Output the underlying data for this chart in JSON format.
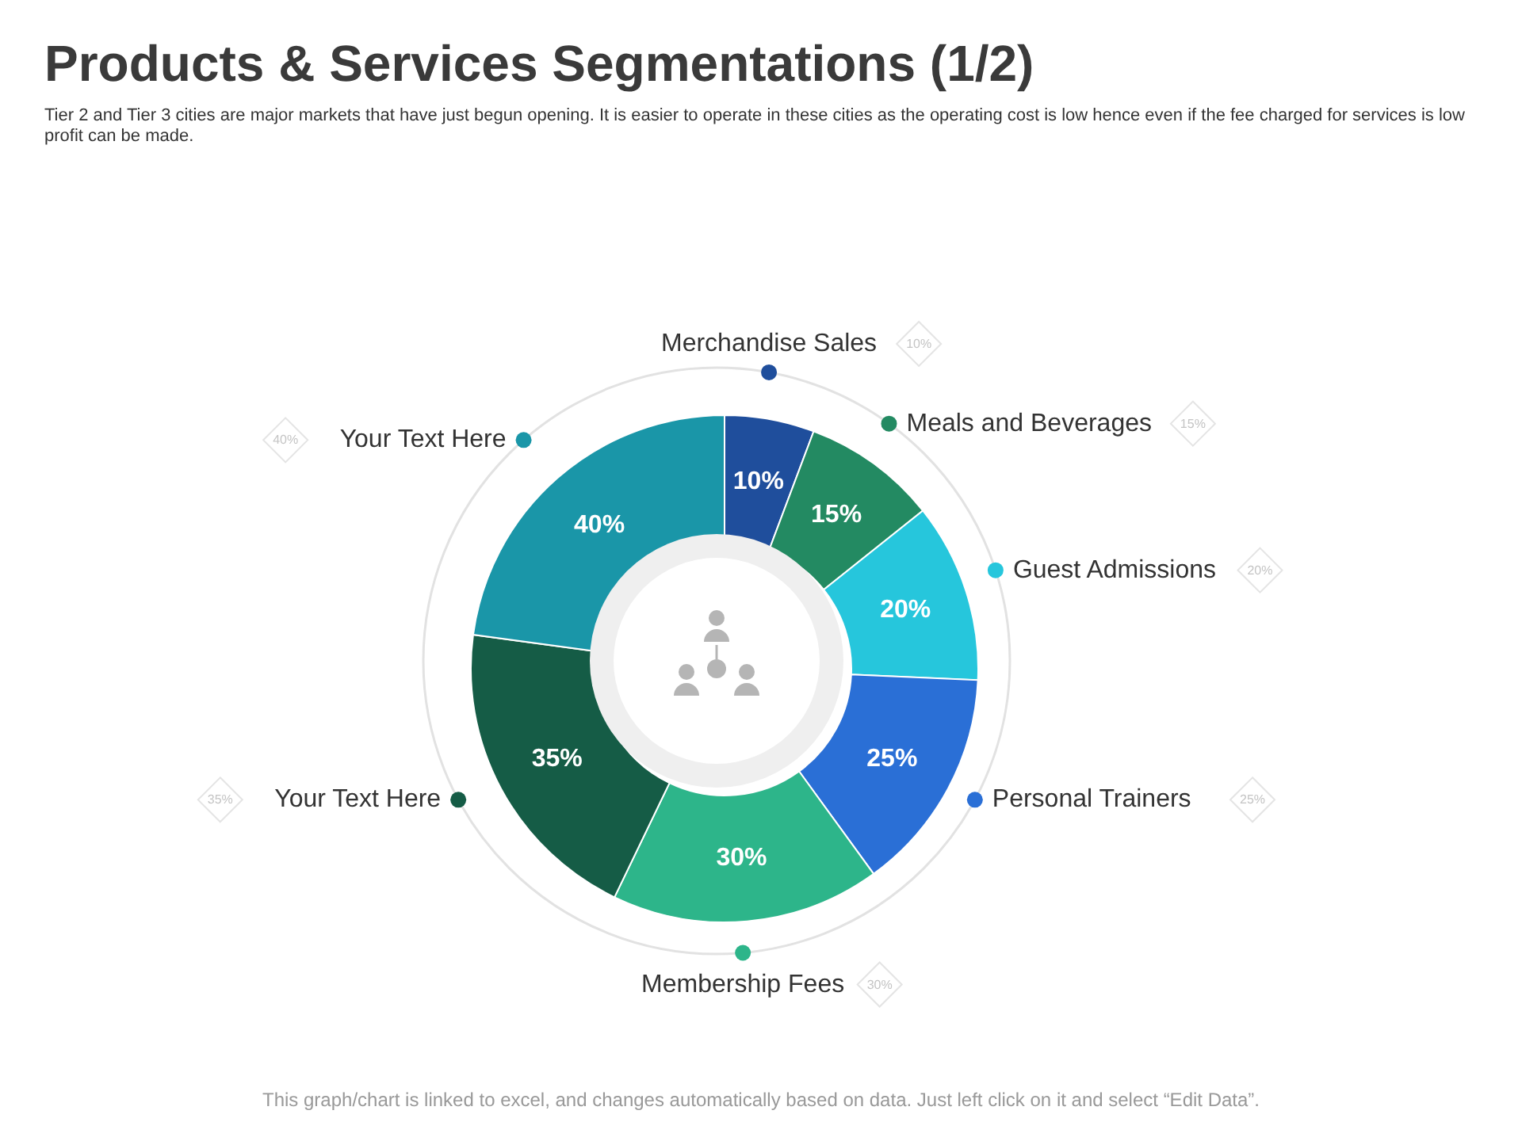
{
  "chart_data": {
    "type": "donut",
    "title": "Products & Services Segmentations (1/2)",
    "subtitle": "Tier 2 and Tier 3 cities are major markets that have just begun opening. It is easier to operate in these cities as the operating cost is low hence even if the fee charged for services is low profit can be made.",
    "categories": [
      "Merchandise Sales",
      "Meals and Beverages",
      "Guest Admissions",
      "Personal Trainers",
      "Membership Fees",
      "Your Text Here",
      "Your Text Here"
    ],
    "values": [
      10,
      15,
      20,
      25,
      30,
      35,
      40
    ],
    "colors": [
      "#1f4e9c",
      "#238a62",
      "#26c6dc",
      "#2a6fd6",
      "#2db58a",
      "#155c46",
      "#1a96a8"
    ],
    "value_labels": [
      "10%",
      "15%",
      "20%",
      "25%",
      "30%",
      "35%",
      "40%"
    ],
    "annotations": [
      "This graph/chart is linked to excel, and changes automatically based on data. Just left click on it and select “Edit Data”."
    ]
  }
}
